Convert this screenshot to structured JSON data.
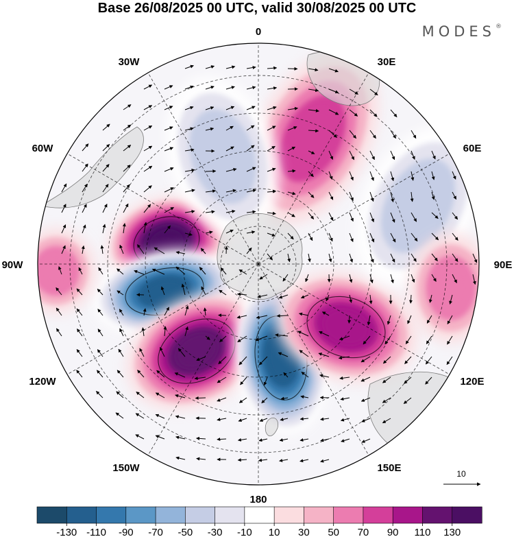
{
  "title": "Base 26/08/2025 00 UTC, valid 30/08/2025 00 UTC",
  "brand": "MODES",
  "brand_mark": "®",
  "longitude_labels": {
    "top": "0",
    "bottom": "180",
    "w30": "30W",
    "e30": "30E",
    "w60": "60W",
    "e60": "60E",
    "w90": "90W",
    "e90": "90E",
    "w120": "120W",
    "e120": "120E",
    "w150": "150W",
    "e150": "150E"
  },
  "reference_vector": {
    "label": "10"
  },
  "colorbar": {
    "ticks": [
      "-130",
      "-110",
      "-90",
      "-70",
      "-50",
      "-30",
      "-10",
      "10",
      "30",
      "50",
      "70",
      "90",
      "110",
      "130"
    ],
    "colors": [
      "#1c4a6a",
      "#245f8e",
      "#3478ad",
      "#5b97c6",
      "#93b4da",
      "#c5cde5",
      "#e4e3ef",
      "#ffffff",
      "#fbdde0",
      "#f5b3c6",
      "#ec7cb0",
      "#d43f9a",
      "#a8168a",
      "#64126f",
      "#4b0f63"
    ]
  },
  "anomaly_centers": [
    {
      "sign": "positive",
      "value": 130
    },
    {
      "sign": "negative",
      "value": -130
    },
    {
      "sign": "positive",
      "value": 110
    },
    {
      "sign": "negative",
      "value": -130
    },
    {
      "sign": "positive",
      "value": 90
    },
    {
      "sign": "positive",
      "value": 70
    },
    {
      "sign": "negative",
      "value": -50
    },
    {
      "sign": "negative",
      "value": -50
    },
    {
      "sign": "positive",
      "value": 50
    },
    {
      "sign": "positive",
      "value": 50
    }
  ]
}
